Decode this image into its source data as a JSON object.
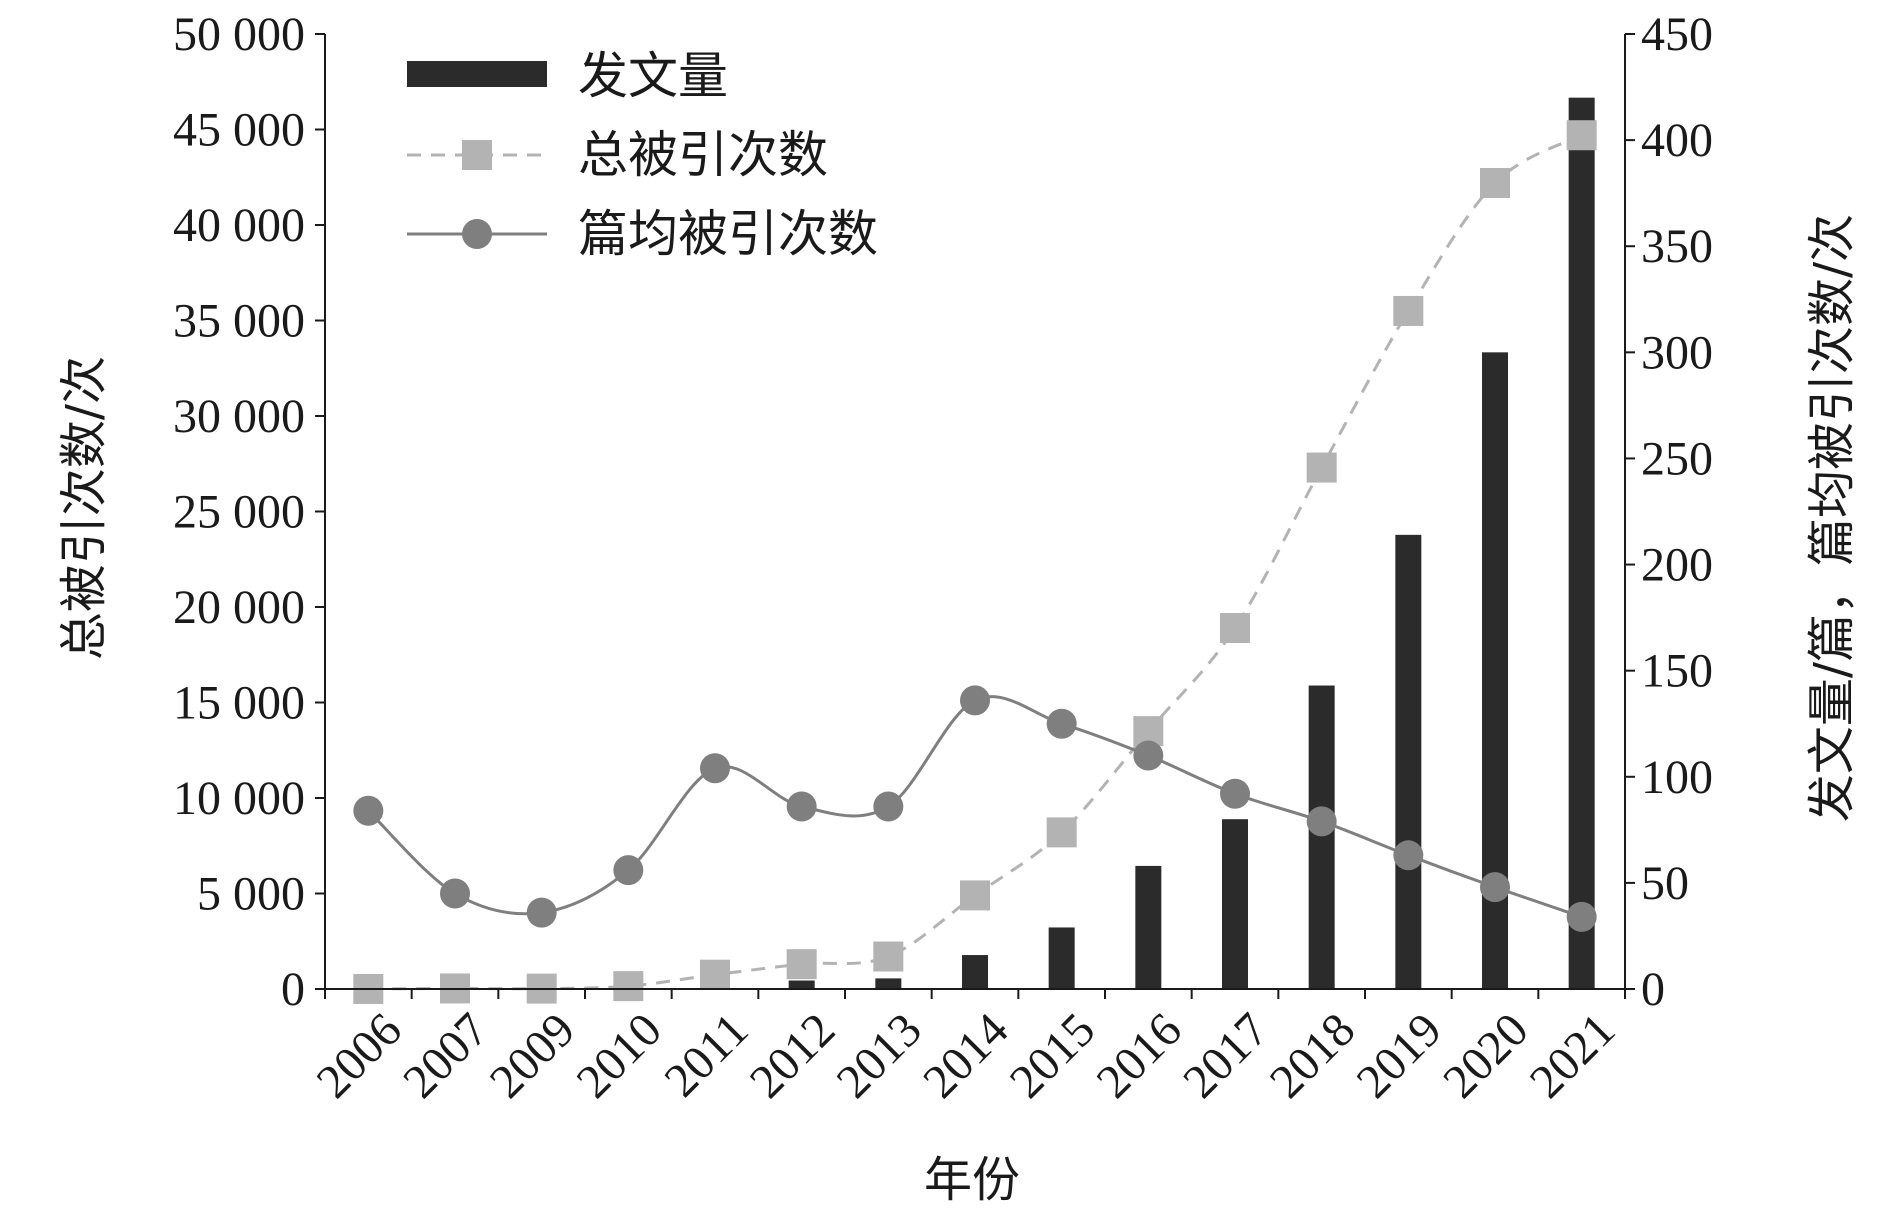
{
  "chart_data": {
    "type": "bar",
    "categories": [
      "2006",
      "2007",
      "2009",
      "2010",
      "2011",
      "2012",
      "2013",
      "2014",
      "2015",
      "2016",
      "2017",
      "2018",
      "2019",
      "2020",
      "2021"
    ],
    "series": [
      {
        "name": "发文量",
        "kind": "bar",
        "axis": "right",
        "color": "#2b2b2b",
        "values": [
          0,
          0,
          0,
          0,
          1,
          4,
          5,
          16,
          29,
          58,
          80,
          143,
          214,
          300,
          420
        ]
      },
      {
        "name": "总被引次数",
        "kind": "line-dashed-square",
        "axis": "left",
        "color": "#b3b3b3",
        "values": [
          0,
          30,
          20,
          150,
          750,
          1300,
          1700,
          4900,
          8200,
          13500,
          18900,
          27300,
          35500,
          42200,
          44700
        ]
      },
      {
        "name": "篇均被引次数",
        "kind": "line-solid-circle",
        "axis": "right",
        "color": "#7f7f7f",
        "values": [
          84,
          45,
          36,
          56,
          104,
          86,
          86,
          136,
          125,
          110,
          92,
          79,
          63,
          48,
          34
        ]
      }
    ],
    "xlabel": "年份",
    "ylabel_left": "总被引次数/次",
    "ylabel_right": "发文量/篇，篇均被引次数/次",
    "ylim_left": [
      0,
      50000
    ],
    "ylim_right": [
      0,
      450
    ],
    "yticks_left": [
      "0",
      "5 000",
      "10 000",
      "15 000",
      "20 000",
      "25 000",
      "30 000",
      "35 000",
      "40 000",
      "45 000",
      "50 000"
    ],
    "yticks_right": [
      "0",
      "50",
      "100",
      "150",
      "200",
      "250",
      "300",
      "350",
      "400",
      "450"
    ],
    "legend_position": "top-left",
    "grid": false
  }
}
